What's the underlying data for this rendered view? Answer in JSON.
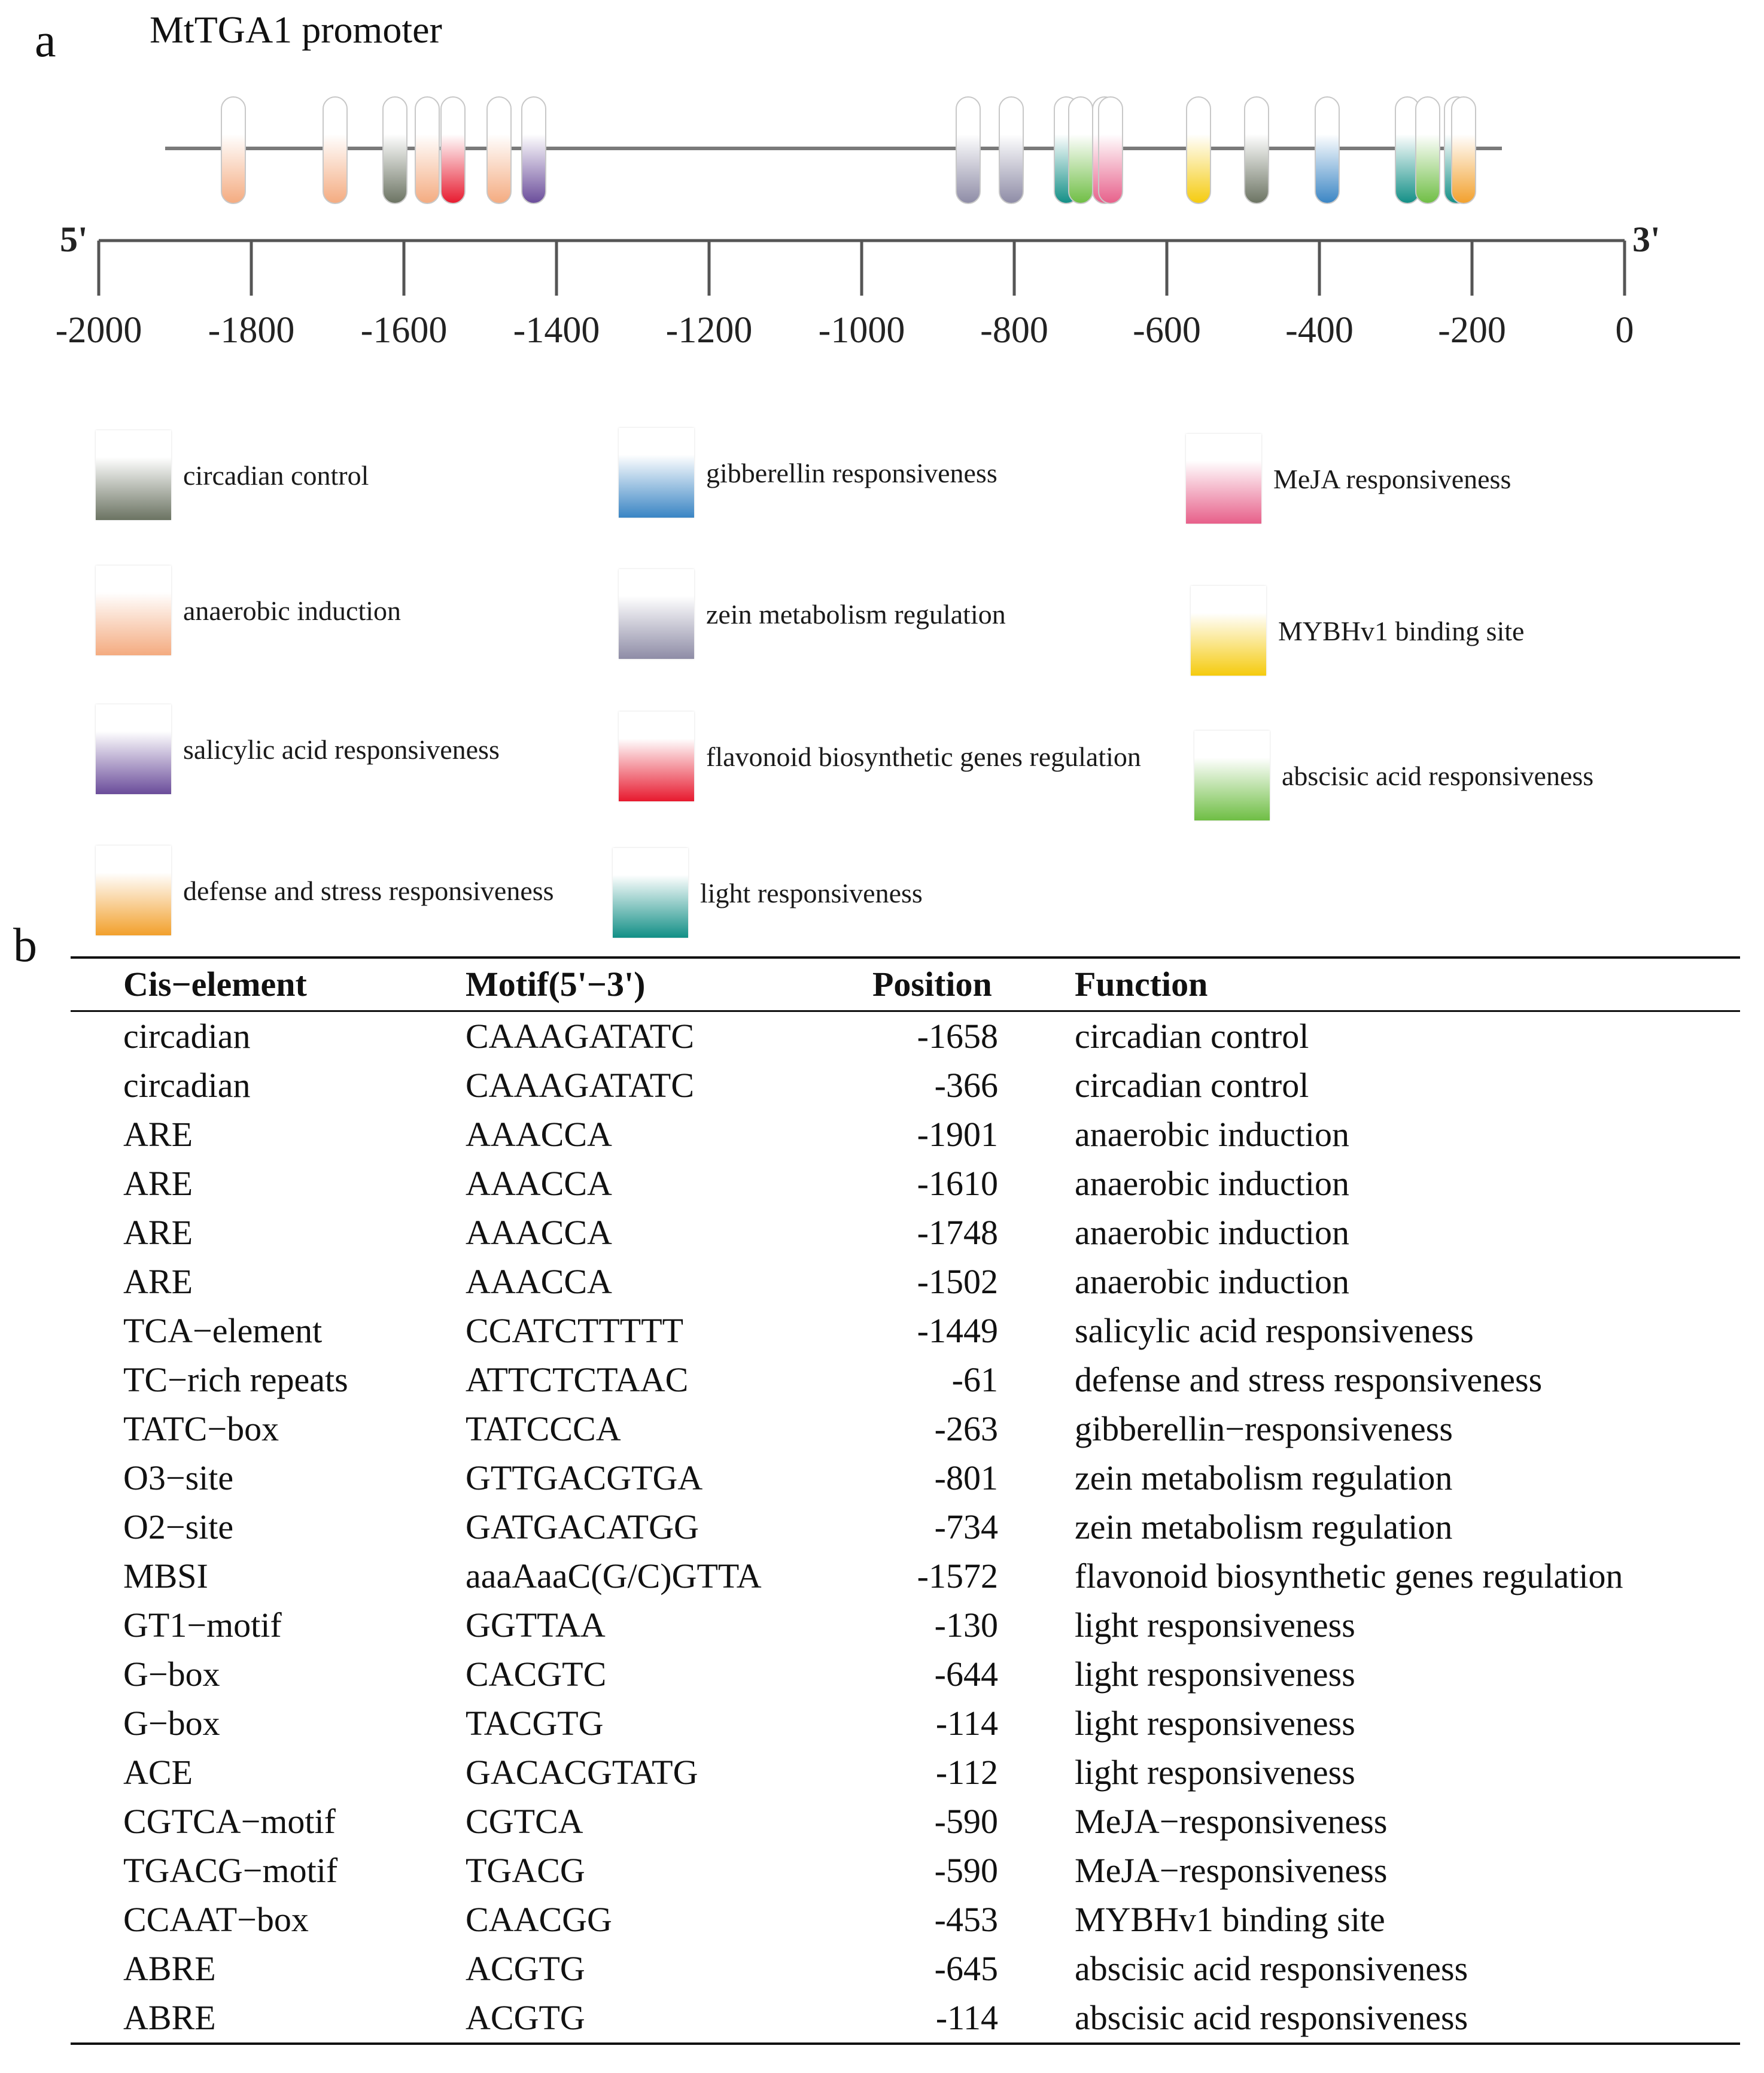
{
  "panel_a": {
    "label": "a",
    "title": "MtTGA1 promoter",
    "end_5": "5'",
    "end_3": "3'",
    "axis_ticks": [
      "-2000",
      "-1800",
      "-1600",
      "-1400",
      "-1200",
      "-1000",
      "-800",
      "-600",
      "-400",
      "-200",
      "0"
    ],
    "elements": [
      {
        "category": "anaerobic induction"
      },
      {
        "category": "anaerobic induction"
      },
      {
        "category": "circadian control"
      },
      {
        "category": "anaerobic induction"
      },
      {
        "category": "flavonoid biosynthetic genes regulation"
      },
      {
        "category": "anaerobic induction"
      },
      {
        "category": "salicylic acid responsiveness"
      },
      {
        "category": "zein metabolism regulation"
      },
      {
        "category": "zein metabolism regulation"
      },
      {
        "category": "light responsiveness"
      },
      {
        "category": "abscisic acid responsiveness"
      },
      {
        "category": "MeJA responsiveness"
      },
      {
        "category": "MeJA responsiveness"
      },
      {
        "category": "MYBHv1 binding site"
      },
      {
        "category": "circadian control"
      },
      {
        "category": "gibberellin responsiveness"
      },
      {
        "category": "light responsiveness"
      },
      {
        "category": "abscisic acid responsiveness"
      },
      {
        "category": "light responsiveness"
      },
      {
        "category": "defense and stress responsiveness"
      }
    ],
    "legend": [
      {
        "label": "circadian control",
        "color": "#6b7362"
      },
      {
        "label": "anaerobic induction",
        "color": "#f4ab80"
      },
      {
        "label": "salicylic acid responsiveness",
        "color": "#6a4c9a"
      },
      {
        "label": "defense and stress responsiveness",
        "color": "#f2a02c"
      },
      {
        "label": "gibberellin responsiveness",
        "color": "#3a85c4"
      },
      {
        "label": "zein metabolism regulation",
        "color": "#8e8ca6"
      },
      {
        "label": "flavonoid biosynthetic genes regulation",
        "color": "#e7192e"
      },
      {
        "label": "light responsiveness",
        "color": "#128f86"
      },
      {
        "label": "MeJA responsiveness",
        "color": "#e7608a"
      },
      {
        "label": "MYBHv1 binding site",
        "color": "#f5cb0e"
      },
      {
        "label": "abscisic acid responsiveness",
        "color": "#6fbe44"
      }
    ]
  },
  "panel_b": {
    "label": "b",
    "headers": {
      "cis": "Cis−element",
      "motif": "Motif(5'−3')",
      "position": "Position",
      "function": "Function"
    },
    "rows": [
      {
        "cis": "circadian",
        "motif": "CAAAGATATC",
        "position": "-1658",
        "function": "circadian control"
      },
      {
        "cis": "circadian",
        "motif": "CAAAGATATC",
        "position": "-366",
        "function": "circadian control"
      },
      {
        "cis": "ARE",
        "motif": "AAACCA",
        "position": "-1901",
        "function": "anaerobic induction"
      },
      {
        "cis": "ARE",
        "motif": "AAACCA",
        "position": "-1610",
        "function": "anaerobic induction"
      },
      {
        "cis": "ARE",
        "motif": "AAACCA",
        "position": "-1748",
        "function": "anaerobic induction"
      },
      {
        "cis": "ARE",
        "motif": "AAACCA",
        "position": "-1502",
        "function": "anaerobic induction"
      },
      {
        "cis": "TCA−element",
        "motif": "CCATCTTTTT",
        "position": "-1449",
        "function": "salicylic acid responsiveness"
      },
      {
        "cis": "TC−rich repeats",
        "motif": "ATTCTCTAAC",
        "position": "-61",
        "function": "defense and stress responsiveness"
      },
      {
        "cis": "TATC−box",
        "motif": "TATCCCA",
        "position": "-263",
        "function": "gibberellin−responsiveness"
      },
      {
        "cis": "O3−site",
        "motif": "GTTGACGTGA",
        "position": "-801",
        "function": "zein metabolism regulation"
      },
      {
        "cis": "O2−site",
        "motif": "GATGACATGG",
        "position": "-734",
        "function": "zein metabolism regulation"
      },
      {
        "cis": "MBSI",
        "motif": "aaaAaaC(G/C)GTTA",
        "position": "-1572",
        "function": "flavonoid biosynthetic genes regulation"
      },
      {
        "cis": "GT1−motif",
        "motif": "GGTTAA",
        "position": "-130",
        "function": "light responsiveness"
      },
      {
        "cis": "G−box",
        "motif": "CACGTC",
        "position": "-644",
        "function": "light responsiveness"
      },
      {
        "cis": "G−box",
        "motif": "TACGTG",
        "position": "-114",
        "function": "light responsiveness"
      },
      {
        "cis": "ACE",
        "motif": "GACACGTATG",
        "position": "-112",
        "function": "light responsiveness"
      },
      {
        "cis": "CGTCA−motif",
        "motif": "CGTCA",
        "position": "-590",
        "function": "MeJA−responsiveness"
      },
      {
        "cis": "TGACG−motif",
        "motif": "TGACG",
        "position": "-590",
        "function": "MeJA−responsiveness"
      },
      {
        "cis": "CCAAT−box",
        "motif": "CAACGG",
        "position": "-453",
        "function": "MYBHv1 binding site"
      },
      {
        "cis": "ABRE",
        "motif": "ACGTG",
        "position": "-645",
        "function": "abscisic acid responsiveness"
      },
      {
        "cis": "ABRE",
        "motif": "ACGTG",
        "position": "-114",
        "function": "abscisic acid responsiveness"
      }
    ]
  }
}
